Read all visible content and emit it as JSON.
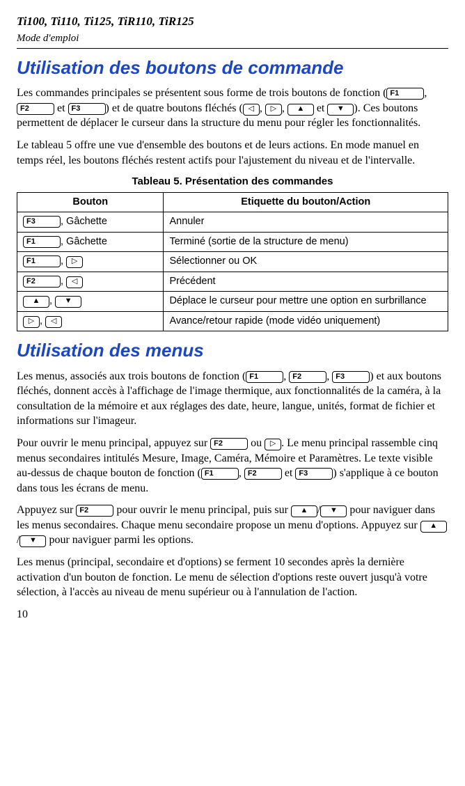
{
  "header": {
    "models": "Ti100, Ti110, Ti125, TiR110, TiR125",
    "subtitle": "Mode d'emploi"
  },
  "btn": {
    "f1": "F1",
    "f2": "F2",
    "f3": "F3",
    "left": "◁",
    "right": "▷",
    "up": "▲",
    "down": "▼"
  },
  "section1": {
    "title": "Utilisation des boutons de commande",
    "p1a": "Les commandes principales se présentent sous forme de trois boutons de fonction (",
    "p1b": ", ",
    "p1c": " et ",
    "p1d": ") et de quatre boutons fléchés (",
    "p1e": ", ",
    "p1f": ", ",
    "p1g": " et ",
    "p1h": "). Ces boutons permettent de déplacer le curseur dans la structure du menu pour régler les fonctionnalités.",
    "p2": "Le tableau 5 offre une vue d'ensemble des boutons et de leurs actions. En mode manuel en temps réel, les boutons fléchés restent actifs pour l'ajustement du niveau et de l'intervalle."
  },
  "table": {
    "caption": "Tableau 5. Présentation des commandes",
    "h1": "Bouton",
    "h2": "Etiquette du bouton/Action",
    "r1_suffix": ", Gâchette",
    "r1_action": "Annuler",
    "r2_suffix": ", Gâchette",
    "r2_action": "Terminé (sortie de la structure de menu)",
    "r3_sep": ", ",
    "r3_action": "Sélectionner ou OK",
    "r4_sep": ", ",
    "r4_action": "Précédent",
    "r5_sep": ", ",
    "r5_action": "Déplace le curseur pour mettre une option en surbrillance",
    "r6_sep": ", ",
    "r6_action": "Avance/retour rapide (mode vidéo uniquement)"
  },
  "section2": {
    "title": "Utilisation des menus",
    "p1a": "Les menus, associés aux trois boutons de fonction (",
    "p1b": ", ",
    "p1c": ", ",
    "p1d": ") et aux boutons fléchés, donnent accès à l'affichage de l'image thermique, aux fonctionnalités de la caméra, à la consultation de la mémoire et aux réglages des date, heure, langue, unités, format de fichier et informations sur l'imageur.",
    "p2a": "Pour ouvrir le menu principal, appuyez sur ",
    "p2b": " ou ",
    "p2c": ". Le menu principal rassemble cinq menus secondaires intitulés Mesure, Image, Caméra, Mémoire et Paramètres. Le texte visible au-dessus de chaque bouton de fonction (",
    "p2d": ", ",
    "p2e": " et ",
    "p2f": ") s'applique à ce bouton dans tous les écrans de menu.",
    "p3a": "Appuyez sur ",
    "p3b": " pour ouvrir le menu principal, puis sur ",
    "p3c": "/",
    "p3d": " pour naviguer dans les menus secondaires. Chaque menu secondaire propose un menu d'options. Appuyez sur ",
    "p3e": "/",
    "p3f": " pour naviguer parmi les options.",
    "p4": "Les menus (principal, secondaire et d'options) se ferment 10 secondes après la dernière activation d'un bouton de fonction. Le menu de sélection d'options reste ouvert jusqu'à votre sélection, à l'accès au niveau de menu supérieur ou à l'annulation de l'action."
  },
  "pagenum": "10"
}
